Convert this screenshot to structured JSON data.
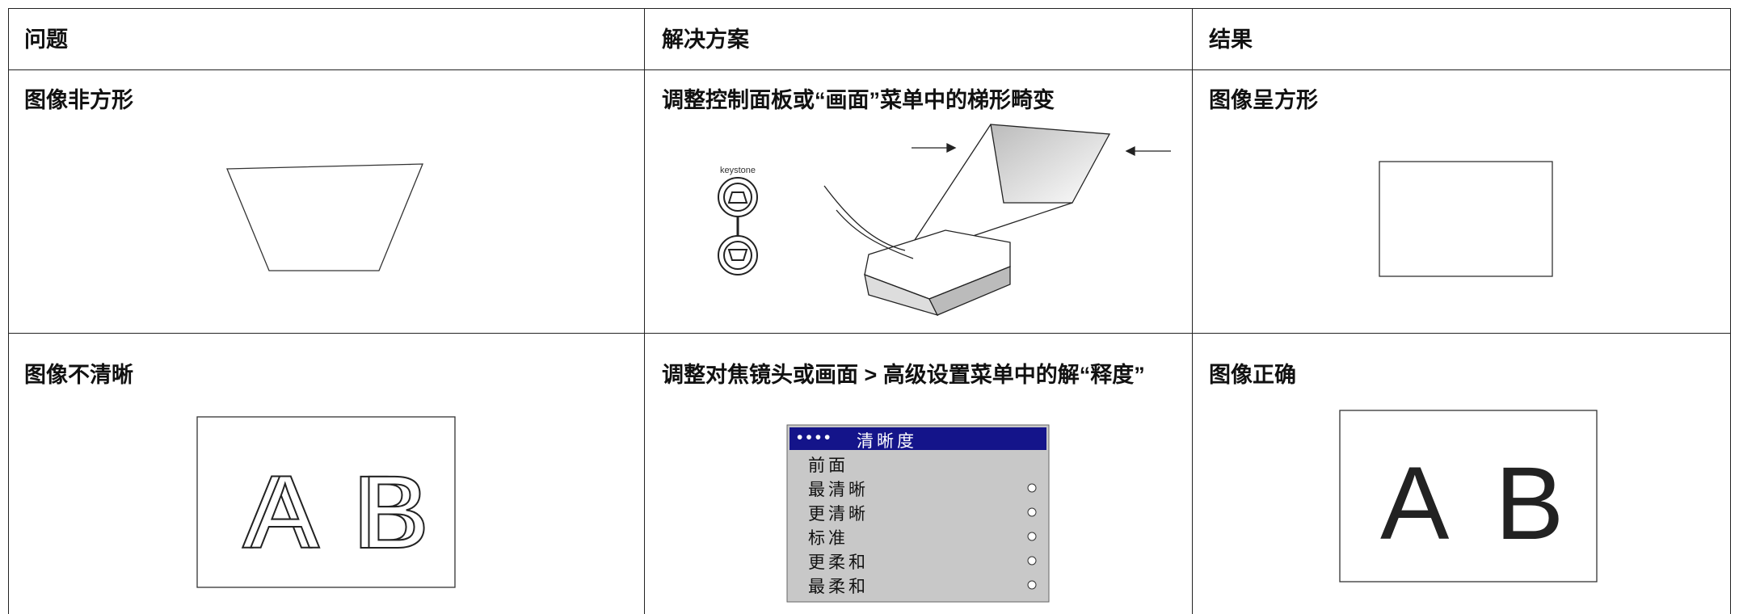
{
  "table": {
    "header": [
      "问题",
      "解决方案",
      "结果"
    ],
    "rows": [
      [
        "图像非方形",
        "调整控制面板或“画面”菜单中的梯形畸变",
        "图像呈方形"
      ],
      [
        "图像不清晰",
        "调整对焦镜头或画面 > 高级设置菜单中的解“释度”",
        "图像正确"
      ]
    ]
  },
  "illustrations": {
    "keystone_label": "keystone",
    "blurry_letters": [
      "A",
      "B"
    ],
    "sharp_letters": [
      "A",
      "B"
    ],
    "menu": {
      "dots": "••••",
      "title": "清晰度",
      "items": [
        "前面",
        "最清晰",
        "更清晰",
        "标准",
        "更柔和",
        "最柔和"
      ]
    }
  }
}
